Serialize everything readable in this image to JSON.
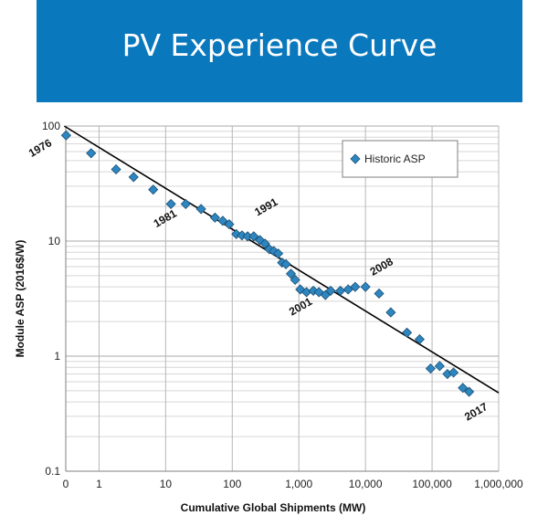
{
  "header": {
    "title": "PV Experience Curve"
  },
  "chart_data": {
    "type": "scatter",
    "title": "",
    "xlabel": "Cumulative Global Shipments (MW)",
    "ylabel": "Module ASP (2016$/W)",
    "x_scale": "log",
    "y_scale": "log",
    "xlim": [
      0,
      1000000
    ],
    "ylim": [
      0.1,
      100
    ],
    "x_tick_labels": [
      "0",
      "1",
      "10",
      "100",
      "1,000",
      "10,000",
      "100,000",
      "1,000,000"
    ],
    "y_tick_labels": [
      "0.1",
      "1",
      "10",
      "100"
    ],
    "grid": true,
    "legend": {
      "position": "top-right",
      "entries": [
        "Historic ASP"
      ]
    },
    "colors": {
      "marker": "#2e86c1",
      "marker_edge": "#1b4f72",
      "trend": "#000000",
      "banner": "#0a78bd"
    },
    "series": [
      {
        "name": "Historic ASP",
        "x": [
          0.32,
          0.76,
          1.8,
          3.3,
          6.5,
          12,
          20,
          34,
          55,
          72,
          90,
          115,
          140,
          170,
          210,
          260,
          310,
          360,
          420,
          490,
          560,
          640,
          760,
          880,
          1050,
          1300,
          1650,
          2000,
          2500,
          3000,
          4200,
          5500,
          7000,
          10000,
          16000,
          24000,
          42000,
          65000,
          95000,
          130000,
          170000,
          210000,
          290000,
          360000
        ],
        "y": [
          83,
          58,
          42,
          36,
          28,
          21,
          21,
          19,
          16,
          15,
          14,
          11.5,
          11.2,
          11,
          11,
          10.2,
          9.5,
          8.5,
          8.2,
          7.8,
          6.5,
          6.3,
          5.2,
          4.6,
          3.8,
          3.6,
          3.7,
          3.6,
          3.4,
          3.7,
          3.7,
          3.8,
          4,
          4,
          3.5,
          2.4,
          1.6,
          1.4,
          0.78,
          0.82,
          0.7,
          0.72,
          0.53,
          0.49
        ]
      }
    ],
    "trendline": {
      "x": [
        0.3,
        1000000
      ],
      "y": [
        100,
        0.48
      ]
    },
    "annotations": [
      {
        "text": "1976",
        "x": 0.32,
        "y": 83
      },
      {
        "text": "1981",
        "x": 12,
        "y": 21
      },
      {
        "text": "1991",
        "x": 210,
        "y": 11
      },
      {
        "text": "2001",
        "x": 1300,
        "y": 3.6
      },
      {
        "text": "2008",
        "x": 10000,
        "y": 4
      },
      {
        "text": "2017",
        "x": 360000,
        "y": 0.49
      }
    ]
  }
}
